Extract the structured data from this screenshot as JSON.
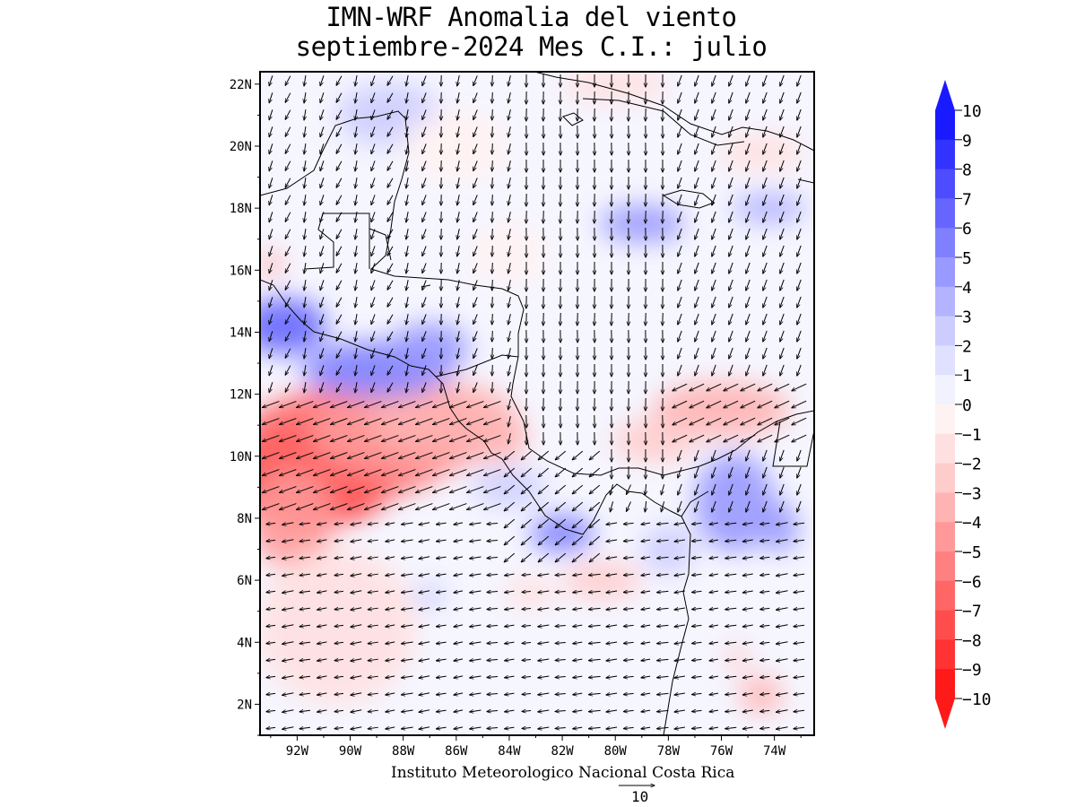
{
  "title": {
    "line1": "IMN-WRF Anomalia del viento",
    "line2": "septiembre-2024 Mes C.I.: julio"
  },
  "footer": "Instituto Meteorologico Nacional Costa Rica",
  "reference_vector": {
    "magnitude": "10"
  },
  "colors": {
    "positive_max": "#0000ff",
    "negative_max": "#ff0000",
    "land_outline": "#000000",
    "arrow": "#000000"
  },
  "chart_data": {
    "type": "heatmap",
    "variable": "wind anomaly",
    "x_ticks": [
      "92W",
      "90W",
      "88W",
      "86W",
      "84W",
      "82W",
      "80W",
      "78W",
      "76W",
      "74W"
    ],
    "x_values": [
      -92,
      -90,
      -88,
      -86,
      -84,
      -82,
      -80,
      -78,
      -76,
      -74
    ],
    "y_ticks": [
      "22N",
      "20N",
      "18N",
      "16N",
      "14N",
      "12N",
      "10N",
      "8N",
      "6N",
      "4N",
      "2N"
    ],
    "y_values": [
      22,
      20,
      18,
      16,
      14,
      12,
      10,
      8,
      6,
      4,
      2
    ],
    "xlim": [
      -93.4,
      -72.5
    ],
    "ylim": [
      1.0,
      22.4
    ],
    "colorbar": {
      "labels": [
        "10",
        "9",
        "8",
        "7",
        "6",
        "5",
        "4",
        "3",
        "2",
        "1",
        "0",
        "−1",
        "−2",
        "−3",
        "−4",
        "−5",
        "−6",
        "−7",
        "−8",
        "−9",
        "−10"
      ],
      "levels": [
        10,
        9,
        8,
        7,
        6,
        5,
        4,
        3,
        2,
        1,
        0,
        -1,
        -2,
        -3,
        -4,
        -5,
        -6,
        -7,
        -8,
        -9,
        -10
      ],
      "colors": [
        "#1a1aff",
        "#3333ff",
        "#4d4dff",
        "#6666ff",
        "#8080ff",
        "#9999ff",
        "#b3b3ff",
        "#ccccff",
        "#e0e0ff",
        "#f2f2ff",
        "#fff2f2",
        "#ffe0e0",
        "#ffcccc",
        "#ffb3b3",
        "#ff9999",
        "#ff8080",
        "#ff6666",
        "#ff4d4d",
        "#ff3333",
        "#ff1a1a"
      ],
      "extend": "both"
    },
    "anomaly_regions": [
      {
        "lon": -91.5,
        "lat": 9.3,
        "value": -9,
        "rx": 3.2,
        "ry": 1.6
      },
      {
        "lon": -90.0,
        "lat": 10.4,
        "value": -7,
        "rx": 4.2,
        "ry": 1.8
      },
      {
        "lon": -88.0,
        "lat": 10.8,
        "value": -5,
        "rx": 3.5,
        "ry": 1.5
      },
      {
        "lon": -86.5,
        "lat": 11.2,
        "value": -4,
        "rx": 2.8,
        "ry": 1.2
      },
      {
        "lon": -84.5,
        "lat": 10.6,
        "value": -4,
        "rx": 1.2,
        "ry": 0.8
      },
      {
        "lon": -92.2,
        "lat": 8.0,
        "value": -5,
        "rx": 1.6,
        "ry": 1.6
      },
      {
        "lon": -92.5,
        "lat": 14.2,
        "value": 6,
        "rx": 1.6,
        "ry": 0.9
      },
      {
        "lon": -89.0,
        "lat": 12.8,
        "value": 5,
        "rx": 2.8,
        "ry": 0.9
      },
      {
        "lon": -87.0,
        "lat": 13.5,
        "value": 4,
        "rx": 1.5,
        "ry": 0.8
      },
      {
        "lon": -82.0,
        "lat": 7.5,
        "value": 5,
        "rx": 1.2,
        "ry": 0.6
      },
      {
        "lon": -79.0,
        "lat": 17.5,
        "value": 4,
        "rx": 1.6,
        "ry": 0.6
      },
      {
        "lon": -74.2,
        "lat": 18.0,
        "value": 3,
        "rx": 1.4,
        "ry": 0.5
      },
      {
        "lon": -75.5,
        "lat": 8.5,
        "value": 4,
        "rx": 1.5,
        "ry": 1.6
      },
      {
        "lon": -73.8,
        "lat": 7.7,
        "value": 4,
        "rx": 0.7,
        "ry": 0.8
      },
      {
        "lon": -76.0,
        "lat": 11.5,
        "value": -4,
        "rx": 2.6,
        "ry": 0.9
      },
      {
        "lon": -78.5,
        "lat": 10.5,
        "value": -3,
        "rx": 1.6,
        "ry": 0.7
      },
      {
        "lon": -74.5,
        "lat": 2.3,
        "value": -4,
        "rx": 0.8,
        "ry": 0.6
      },
      {
        "lon": -75.4,
        "lat": 3.5,
        "value": -3,
        "rx": 0.4,
        "ry": 0.5
      },
      {
        "lon": -80.0,
        "lat": 22.0,
        "value": -2,
        "rx": 2.0,
        "ry": 0.6
      },
      {
        "lon": -74.5,
        "lat": 19.8,
        "value": -2,
        "rx": 1.6,
        "ry": 0.6
      },
      {
        "lon": -93.0,
        "lat": 16.2,
        "value": -4,
        "rx": 0.5,
        "ry": 0.4
      },
      {
        "lon": -80.5,
        "lat": 6.0,
        "value": -3,
        "rx": 1.5,
        "ry": 0.6
      },
      {
        "lon": -83.2,
        "lat": 5.6,
        "value": -2,
        "rx": 1.0,
        "ry": 0.5
      },
      {
        "lon": -87.0,
        "lat": 5.5,
        "value": 2,
        "rx": 0.6,
        "ry": 0.4
      },
      {
        "lon": -78.0,
        "lat": 7.0,
        "value": 2,
        "rx": 1.0,
        "ry": 0.8
      },
      {
        "lon": -84.0,
        "lat": 9.0,
        "value": 2,
        "rx": 1.4,
        "ry": 0.6
      },
      {
        "lon": -88.5,
        "lat": 21.0,
        "value": 2,
        "rx": 2.0,
        "ry": 1.0
      },
      {
        "lon": -86.0,
        "lat": 20.0,
        "value": -1,
        "rx": 2.0,
        "ry": 1.2
      },
      {
        "lon": -84.0,
        "lat": 16.5,
        "value": -1,
        "rx": 1.5,
        "ry": 1.0
      },
      {
        "lon": -90.5,
        "lat": 4.5,
        "value": -2,
        "rx": 3.0,
        "ry": 2.5
      }
    ]
  }
}
